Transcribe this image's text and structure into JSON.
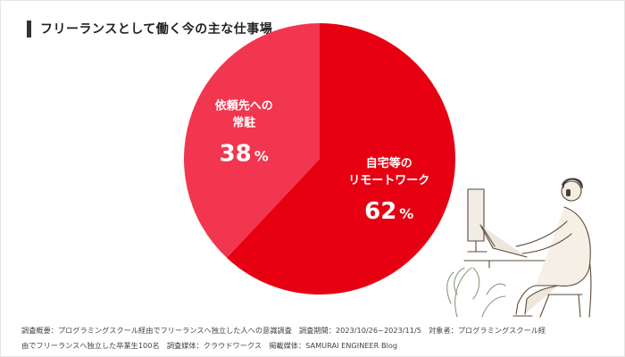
{
  "header": {
    "title": "フリーランスとして働く今の主な仕事場"
  },
  "chart_data": {
    "type": "pie",
    "title": "フリーランスとして働く今の主な仕事場",
    "slices": [
      {
        "label_lines": [
          "自宅等の",
          "リモートワーク"
        ],
        "value": 62,
        "value_text": "62",
        "unit": "%",
        "color": "#e60012"
      },
      {
        "label_lines": [
          "依頼先への",
          "常駐"
        ],
        "value": 38,
        "value_text": "38",
        "unit": "%",
        "color": "#f2364f"
      }
    ],
    "start_angle_deg": 0,
    "direction": "clockwise",
    "legend": "none"
  },
  "footnote": {
    "line1": "調査概要：プログラミングスクール経由でフリーランスへ独立した人への意識調査　調査期間：2023/10/26~2023/11/5　対象者：プログラミングスクール経",
    "line2": "由でフリーランスへ独立した卒業生100名　調査媒体：クラウドワークス　掲載媒体：SAMURAI ENGINEER Blog"
  },
  "illustration": {
    "subject": "person-working-at-computer"
  }
}
